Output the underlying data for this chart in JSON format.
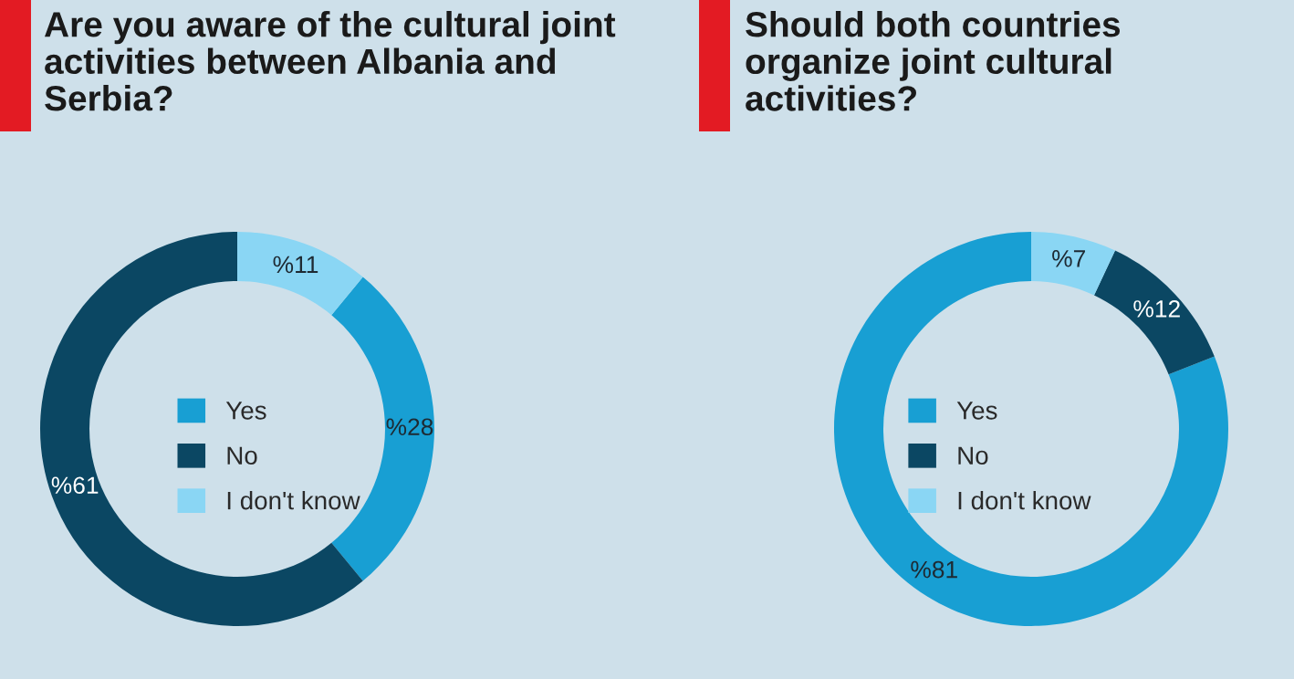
{
  "chart_data": [
    {
      "type": "donut",
      "title": "Are you aware of the cultural joint activities between Albania and Serbia?",
      "categories": [
        "Yes",
        "No",
        "I don't know"
      ],
      "values": [
        28,
        61,
        11
      ],
      "colors": [
        "#189fd3",
        "#0b4763",
        "#8ad6f4"
      ],
      "value_labels": [
        "%28",
        "%61",
        "%11"
      ],
      "legend": "center"
    },
    {
      "type": "donut",
      "title": "Should both countries organize joint cultural activities?",
      "categories": [
        "Yes",
        "No",
        "I don't know"
      ],
      "values": [
        81,
        12,
        7
      ],
      "colors": [
        "#189fd3",
        "#0b4763",
        "#8ad6f4"
      ],
      "value_labels": [
        "%81",
        "%12",
        "%7"
      ],
      "legend": "center"
    }
  ]
}
